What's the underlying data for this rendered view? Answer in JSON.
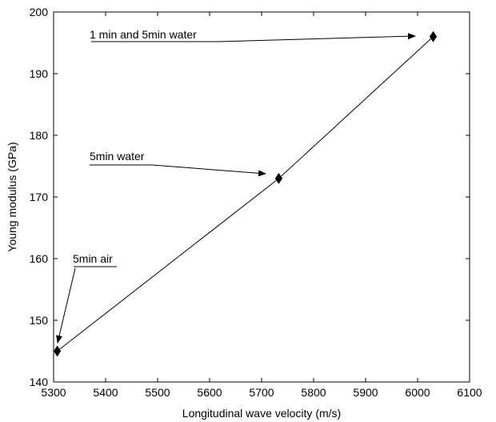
{
  "chart_data": {
    "type": "scatter",
    "title": "",
    "xlabel": "Longitudinal wave velocity (m/s)",
    "ylabel": "Young modulus (GPa)",
    "xlim": [
      5300,
      6100
    ],
    "ylim": [
      140,
      200
    ],
    "xticks": [
      "5300",
      "5400",
      "5500",
      "5600",
      "5700",
      "5800",
      "5900",
      "6000",
      "6100"
    ],
    "yticks": [
      "140",
      "150",
      "160",
      "170",
      "180",
      "190",
      "200"
    ],
    "grid": false,
    "line_color": "#000000",
    "marker": "diamond",
    "points": [
      {
        "x": 5307,
        "y": 145
      },
      {
        "x": 5733,
        "y": 173
      },
      {
        "x": 6030,
        "y": 196
      }
    ],
    "annotations": [
      {
        "text": "1 min and 5min water"
      },
      {
        "text": "5min water"
      },
      {
        "text": "5min air"
      }
    ]
  }
}
